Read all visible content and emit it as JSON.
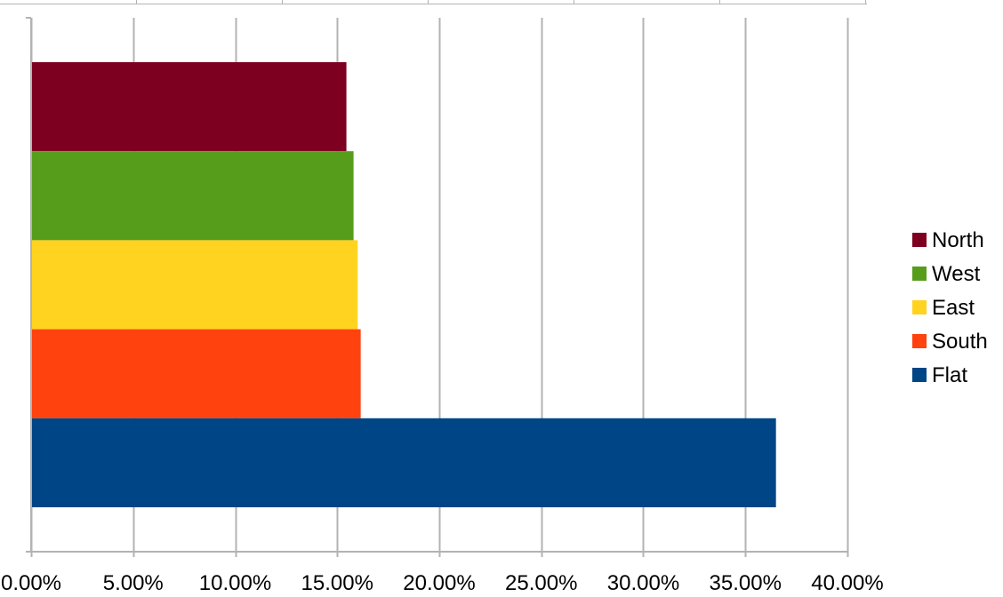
{
  "chart_data": {
    "type": "bar",
    "orientation": "horizontal",
    "title": "",
    "xlabel": "",
    "ylabel": "",
    "xlim": [
      0,
      0.4
    ],
    "x_ticks": [
      0,
      0.05,
      0.1,
      0.15,
      0.2,
      0.25,
      0.3,
      0.35,
      0.4
    ],
    "x_tick_labels": [
      "0.00%",
      "5.00%",
      "10.00%",
      "15.00%",
      "20.00%",
      "25.00%",
      "30.00%",
      "35.00%",
      "40.00%"
    ],
    "grid": "vertical major gridlines",
    "legend_position": "right",
    "series": [
      {
        "name": "North",
        "value": 0.1545,
        "color": "#7E0021"
      },
      {
        "name": "West",
        "value": 0.158,
        "color": "#579D1C"
      },
      {
        "name": "East",
        "value": 0.16,
        "color": "#FFD320"
      },
      {
        "name": "South",
        "value": 0.1615,
        "color": "#FF420E"
      },
      {
        "name": "Flat",
        "value": 0.365,
        "color": "#004586"
      }
    ],
    "legend_order": [
      "North",
      "West",
      "East",
      "South",
      "Flat"
    ]
  }
}
